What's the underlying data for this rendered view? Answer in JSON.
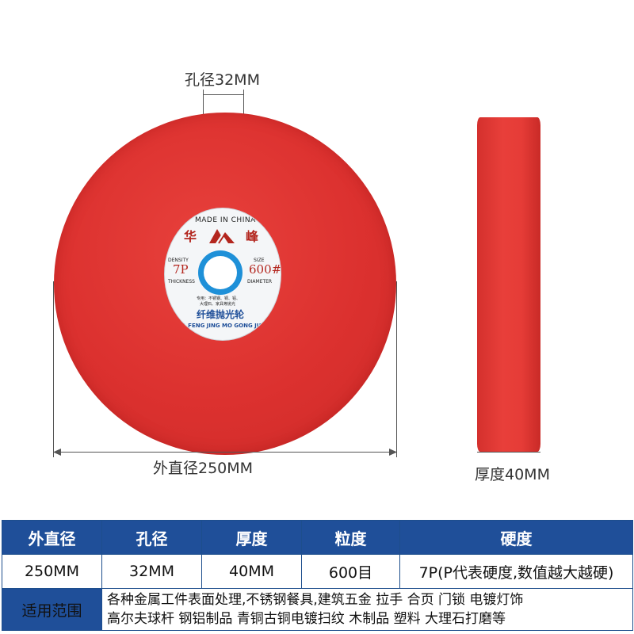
{
  "diagram": {
    "hole_label": "孔径32MM",
    "outer_label": "外直径250MM",
    "thickness_label": "厚度40MM"
  },
  "wheel_label": {
    "made_in": "MADE IN CHINA",
    "brand_left": "华",
    "brand_right": "峰",
    "density_caption": "DENSITY",
    "density_value": "7P",
    "thickness_caption": "THICKNESS",
    "size_caption": "SIZE",
    "size_value": "600#",
    "diameter_caption": "DIAMETER",
    "use_line1": "专用：不锈钢、铜、铝、",
    "use_line2": "大理石、家具等抛光",
    "product_cn": "纤维抛光轮",
    "company_en": "HUA FENG JING MO GONG JU CHANG"
  },
  "table": {
    "headers": [
      "外直径",
      "孔径",
      "厚度",
      "粒度",
      "硬度"
    ],
    "values": [
      "250MM",
      "32MM",
      "40MM",
      "600目",
      "7P(P代表硬度,数值越大越硬)"
    ],
    "range_label": "适用范围",
    "range_line1": "各种金属工件表面处理,不锈钢餐具,建筑五金 拉手 合页 门锁 电镀灯饰",
    "range_line2": "高尔夫球杆 钢铝制品 青铜古铜电镀扫纹 木制品 塑料 大理石打磨等"
  },
  "colors": {
    "wheel_red": "#dc312f",
    "header_blue": "#1f4f99",
    "hole_ring_blue": "#1e90d8"
  }
}
